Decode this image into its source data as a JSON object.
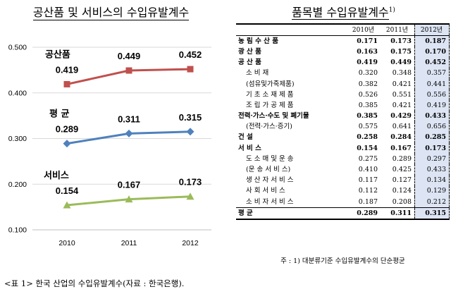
{
  "left_title": "공산품 및 서비스의 수입유발계수",
  "right_title": "품목별 수입유발계수",
  "right_title_sup": "1)",
  "chart_data": {
    "type": "line",
    "categories": [
      "2010",
      "2011",
      "2012"
    ],
    "ylim": [
      0.1,
      0.5
    ],
    "yticks": [
      "0.500",
      "0.400",
      "0.300",
      "0.200",
      "0.100"
    ],
    "series": [
      {
        "name": "공산품",
        "values": [
          0.419,
          0.449,
          0.452
        ],
        "labels": [
          "0.419",
          "0.449",
          "0.452"
        ],
        "color": "#c0504d"
      },
      {
        "name": "평 균",
        "values": [
          0.289,
          0.311,
          0.315
        ],
        "labels": [
          "0.289",
          "0.311",
          "0.315"
        ],
        "color": "#4f81bd"
      },
      {
        "name": "서비스",
        "values": [
          0.154,
          0.167,
          0.173
        ],
        "labels": [
          "0.154",
          "0.167",
          "0.173"
        ],
        "color": "#9bbb59"
      }
    ]
  },
  "table": {
    "headers": [
      "2010년",
      "2011년",
      "2012년"
    ],
    "rows": [
      {
        "label": "농 림 수 산 품",
        "v": [
          "0.171",
          "0.173",
          "0.187"
        ],
        "bold": true,
        "indent": 0
      },
      {
        "label": "광 산 품",
        "v": [
          "0.163",
          "0.175",
          "0.170"
        ],
        "bold": true,
        "indent": 0
      },
      {
        "label": "공 산 품",
        "v": [
          "0.419",
          "0.449",
          "0.452"
        ],
        "bold": true,
        "indent": 0
      },
      {
        "label": "소 비 재",
        "v": [
          "0.320",
          "0.348",
          "0.357"
        ],
        "bold": false,
        "indent": 1
      },
      {
        "label": "(섬유및가죽제품)",
        "v": [
          "0.382",
          "0.421",
          "0.441"
        ],
        "bold": false,
        "indent": 1
      },
      {
        "label": "기 초 소 재 제 품",
        "v": [
          "0.526",
          "0.551",
          "0.556"
        ],
        "bold": false,
        "indent": 1
      },
      {
        "label": "조 립 가 공 제 품",
        "v": [
          "0.385",
          "0.421",
          "0.419"
        ],
        "bold": false,
        "indent": 1
      },
      {
        "label": "전력·가스·수도 및 폐기물",
        "v": [
          "0.385",
          "0.429",
          "0.433"
        ],
        "bold": true,
        "indent": 0
      },
      {
        "label": "(전력·가스·증기)",
        "v": [
          "0.575",
          "0.641",
          "0.656"
        ],
        "bold": false,
        "indent": 1
      },
      {
        "label": "건 설",
        "v": [
          "0.258",
          "0.284",
          "0.285"
        ],
        "bold": true,
        "indent": 0
      },
      {
        "label": "서 비 스",
        "v": [
          "0.154",
          "0.167",
          "0.173"
        ],
        "bold": true,
        "indent": 0
      },
      {
        "label": "도 소 매 및 운 송",
        "v": [
          "0.275",
          "0.289",
          "0.297"
        ],
        "bold": false,
        "indent": 1
      },
      {
        "label": "(운 송 서 비 스)",
        "v": [
          "0.410",
          "0.425",
          "0.433"
        ],
        "bold": false,
        "indent": 1
      },
      {
        "label": "생 산 자 서 비 스",
        "v": [
          "0.117",
          "0.127",
          "0.134"
        ],
        "bold": false,
        "indent": 1
      },
      {
        "label": "사 회 서 비 스",
        "v": [
          "0.112",
          "0.124",
          "0.129"
        ],
        "bold": false,
        "indent": 1
      },
      {
        "label": "소 비 자 서 비 스",
        "v": [
          "0.187",
          "0.208",
          "0.212"
        ],
        "bold": false,
        "indent": 1
      }
    ],
    "average": {
      "label": "평 균",
      "v": [
        "0.289",
        "0.311",
        "0.315"
      ]
    }
  },
  "note": "주 : 1) 대분류기준 수입유발계수의 단순평균",
  "caption": "<표 1> 한국 산업의 수입유발계수(자료 : 한국은행)."
}
